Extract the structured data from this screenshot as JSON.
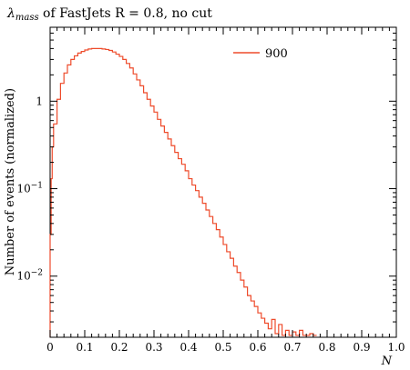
{
  "chart_data": {
    "type": "line",
    "title": {
      "symbol": "λ",
      "subscript": "mass",
      "rest": " of FastJets R = 0.8, no cut"
    },
    "xlabel": "N",
    "ylabel": "Number of events (normalized)",
    "xlim": [
      0,
      1.0
    ],
    "ylim": [
      0.002,
      7
    ],
    "y_scale": "log",
    "x_ticks": [
      0,
      0.1,
      0.2,
      0.3,
      0.4,
      0.5,
      0.6,
      0.7,
      0.8,
      0.9,
      1.0
    ],
    "x_tick_labels": [
      "0",
      "0.1",
      "0.2",
      "0.3",
      "0.4",
      "0.5",
      "0.6",
      "0.7",
      "0.8",
      "0.9",
      "1.0"
    ],
    "y_ticks": [
      {
        "value": 1,
        "base": "1",
        "exp": ""
      },
      {
        "value": 0.1,
        "base": "10",
        "exp": "−1"
      },
      {
        "value": 0.01,
        "base": "10",
        "exp": "−2"
      }
    ],
    "legend": {
      "placement": "top-right"
    },
    "grid": false,
    "colors": {
      "series": "#ee4b2b",
      "axis": "#000000"
    },
    "series": [
      {
        "name": "900",
        "x": [
          0,
          0.003,
          0.006,
          0.01,
          0.02,
          0.03,
          0.04,
          0.05,
          0.06,
          0.07,
          0.08,
          0.09,
          0.1,
          0.11,
          0.12,
          0.13,
          0.14,
          0.15,
          0.16,
          0.17,
          0.18,
          0.19,
          0.2,
          0.21,
          0.22,
          0.23,
          0.24,
          0.25,
          0.26,
          0.27,
          0.28,
          0.29,
          0.3,
          0.31,
          0.32,
          0.33,
          0.34,
          0.35,
          0.36,
          0.37,
          0.38,
          0.39,
          0.4,
          0.41,
          0.42,
          0.43,
          0.44,
          0.45,
          0.46,
          0.47,
          0.48,
          0.49,
          0.5,
          0.51,
          0.52,
          0.53,
          0.54,
          0.55,
          0.56,
          0.57,
          0.58,
          0.59,
          0.6,
          0.61,
          0.62,
          0.63,
          0.64,
          0.65,
          0.66,
          0.67,
          0.68,
          0.69,
          0.7,
          0.71,
          0.72,
          0.73,
          0.74,
          0.75,
          0.76
        ],
        "y": [
          0.03,
          0.13,
          0.3,
          0.55,
          1.05,
          1.6,
          2.1,
          2.6,
          3.0,
          3.3,
          3.55,
          3.7,
          3.85,
          3.95,
          4.0,
          4.0,
          4.0,
          3.95,
          3.9,
          3.8,
          3.65,
          3.45,
          3.25,
          3.0,
          2.7,
          2.4,
          2.05,
          1.75,
          1.5,
          1.25,
          1.05,
          0.88,
          0.75,
          0.62,
          0.52,
          0.44,
          0.37,
          0.31,
          0.26,
          0.22,
          0.19,
          0.16,
          0.13,
          0.11,
          0.095,
          0.08,
          0.068,
          0.057,
          0.048,
          0.04,
          0.034,
          0.028,
          0.023,
          0.019,
          0.016,
          0.013,
          0.011,
          0.009,
          0.0075,
          0.006,
          0.0052,
          0.0045,
          0.0038,
          0.0033,
          0.0029,
          0.0025,
          0.0032,
          0.0022,
          0.0028,
          0.0021,
          0.0024,
          0.0021,
          0.0023,
          0.0021,
          0.0024,
          0.0021,
          0.0021,
          0.0022,
          0.0021
        ]
      }
    ]
  }
}
